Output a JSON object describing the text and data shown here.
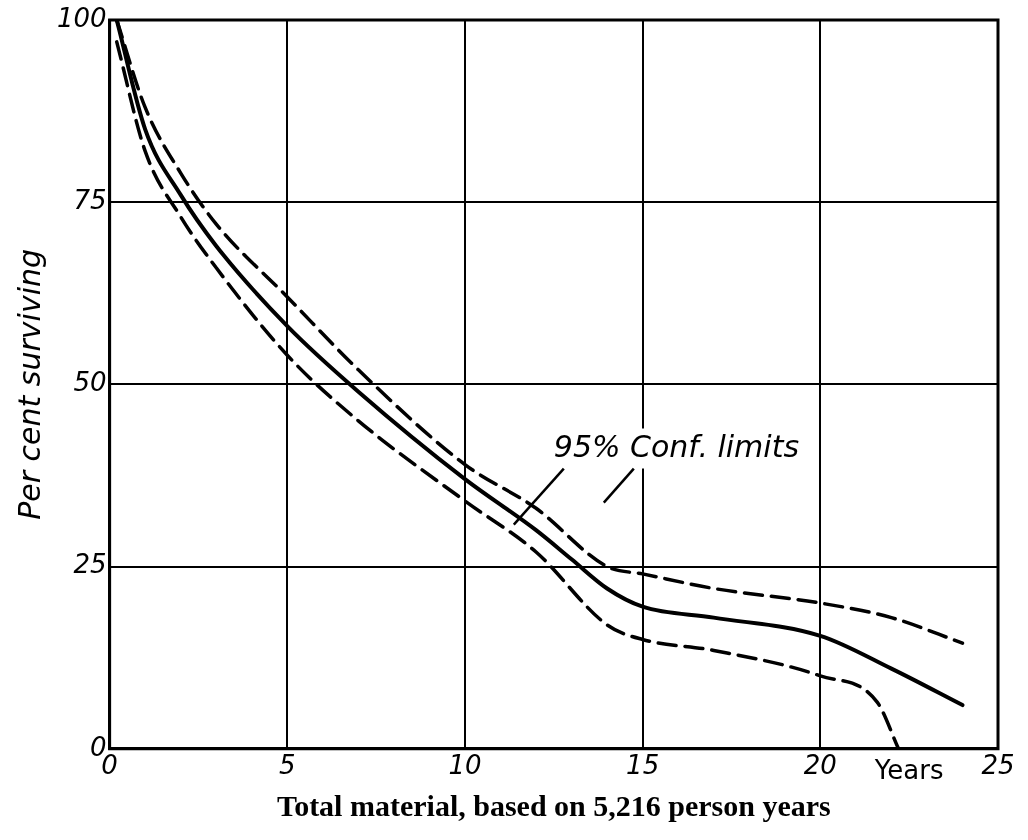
{
  "chart_data": {
    "type": "line",
    "xlabel": "Total material, based on 5,216 person years",
    "ylabel": "Per cent surviving",
    "xlim": [
      0,
      25
    ],
    "xticks": [
      0,
      5,
      10,
      15,
      20,
      25
    ],
    "ylim": [
      0,
      100
    ],
    "yticks": [
      0,
      25,
      50,
      75,
      100
    ],
    "grid": true,
    "legend": false,
    "marker": "none",
    "annotations": [
      "95% Conf. limits",
      "Years"
    ],
    "series": [
      {
        "color": "#000000",
        "line_style": "solid",
        "x": [
          0.2,
          1,
          2,
          3,
          5,
          7,
          10,
          12,
          13,
          14,
          15,
          17,
          20,
          22,
          24
        ],
        "values": [
          100,
          85,
          76,
          69,
          58,
          49,
          37,
          30,
          26,
          22,
          19.5,
          18,
          15.5,
          11,
          6
        ]
      },
      {
        "color": "#000000",
        "line_style": "dashed",
        "x": [
          0.2,
          1,
          2,
          3,
          5,
          7,
          10,
          12,
          14,
          15,
          17,
          20,
          22,
          24
        ],
        "values": [
          100,
          88,
          79,
          72,
          62,
          52,
          39,
          33,
          25,
          24,
          22,
          20,
          18,
          14.5
        ]
      },
      {
        "color": "#000000",
        "line_style": "dashed",
        "x": [
          0.2,
          1,
          2,
          3,
          5,
          7,
          10,
          12,
          14,
          15,
          17,
          20,
          21.6,
          22.2
        ],
        "values": [
          97,
          82,
          73,
          66,
          54,
          45,
          34,
          27,
          17,
          15,
          13.5,
          10,
          6.4,
          0
        ]
      }
    ]
  }
}
